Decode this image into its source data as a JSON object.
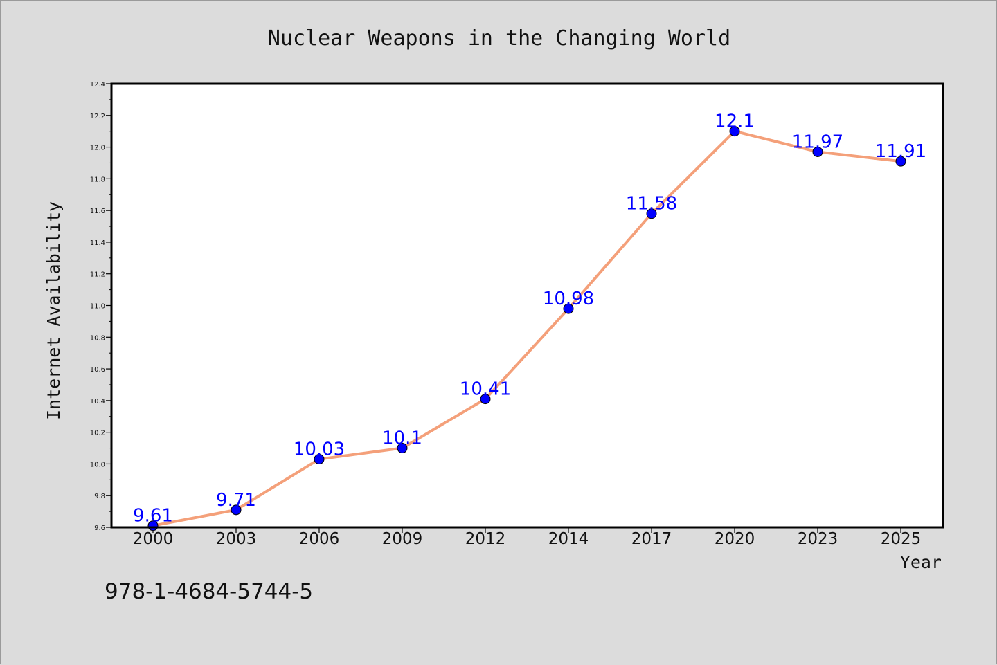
{
  "chart_data": {
    "type": "line",
    "title": "Nuclear Weapons in the Changing World",
    "xlabel": "Year",
    "ylabel": "Internet Availability",
    "categories": [
      "2000",
      "2003",
      "2006",
      "2009",
      "2012",
      "2014",
      "2017",
      "2020",
      "2023",
      "2025"
    ],
    "values": [
      9.61,
      9.71,
      10.03,
      10.1,
      10.41,
      10.98,
      11.58,
      12.1,
      11.97,
      11.91
    ],
    "data_labels": [
      "9.61",
      "9.71",
      "10.03",
      "10.1",
      "10.41",
      "10.98",
      "11.58",
      "12.1",
      "11.97",
      "11.91"
    ],
    "ylim": [
      9.6,
      12.4
    ],
    "yticks": [
      "9.6",
      "9.8",
      "10.0",
      "10.2",
      "10.4",
      "10.6",
      "10.8",
      "11.0",
      "11.2",
      "11.4",
      "11.6",
      "11.8",
      "12.0",
      "12.2",
      "12.4"
    ],
    "grid": false,
    "legend": "none",
    "colors": {
      "line": "#f4a07a",
      "marker": "#0000ff",
      "label": "#0000ff",
      "background": "#dcdcdc",
      "plot_area": "#ffffff"
    }
  },
  "isbn": "978-1-4684-5744-5"
}
